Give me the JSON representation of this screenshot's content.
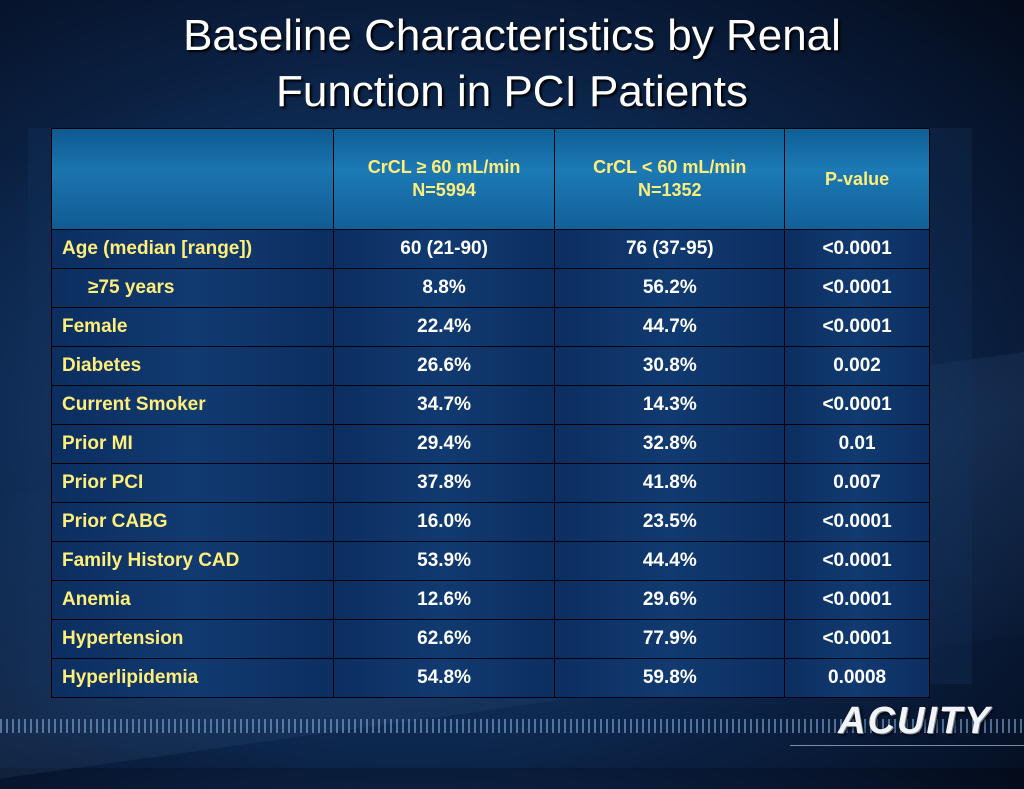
{
  "slide": {
    "title_line1": "Baseline Characteristics by Renal",
    "title_line2": "Function in PCI Patients",
    "logo_text": "ACUITY"
  },
  "table": {
    "headers": [
      {
        "line1": "",
        "line2": ""
      },
      {
        "line1": "CrCL ≥ 60 mL/min",
        "line2": "N=5994"
      },
      {
        "line1": "CrCL < 60 mL/min",
        "line2": "N=1352"
      },
      {
        "line1": "P-value",
        "line2": ""
      }
    ],
    "rows": [
      {
        "label": "Age (median [range])",
        "a": "60 (21-90)",
        "b": "76 (37-95)",
        "p": "<0.0001"
      },
      {
        "label": "≥75 years",
        "a": "8.8%",
        "b": "56.2%",
        "p": "<0.0001"
      },
      {
        "label": "Female",
        "a": "22.4%",
        "b": "44.7%",
        "p": "<0.0001"
      },
      {
        "label": "Diabetes",
        "a": "26.6%",
        "b": "30.8%",
        "p": "0.002"
      },
      {
        "label": "Current Smoker",
        "a": "34.7%",
        "b": "14.3%",
        "p": "<0.0001"
      },
      {
        "label": "Prior MI",
        "a": "29.4%",
        "b": "32.8%",
        "p": "0.01"
      },
      {
        "label": "Prior PCI",
        "a": "37.8%",
        "b": "41.8%",
        "p": "0.007"
      },
      {
        "label": "Prior CABG",
        "a": "16.0%",
        "b": "23.5%",
        "p": "<0.0001"
      },
      {
        "label": "Family History CAD",
        "a": "53.9%",
        "b": "44.4%",
        "p": "<0.0001"
      },
      {
        "label": "Anemia",
        "a": "12.6%",
        "b": "29.6%",
        "p": "<0.0001"
      },
      {
        "label": "Hypertension",
        "a": "62.6%",
        "b": "77.9%",
        "p": "<0.0001"
      },
      {
        "label": "Hyperlipidemia",
        "a": "54.8%",
        "b": "59.8%",
        "p": "0.0008"
      }
    ]
  },
  "colors": {
    "label_text": "#ffef7a",
    "value_text": "#ffffff",
    "header_bg": "#1c7ab5",
    "row_bg": "#0c2e60"
  }
}
